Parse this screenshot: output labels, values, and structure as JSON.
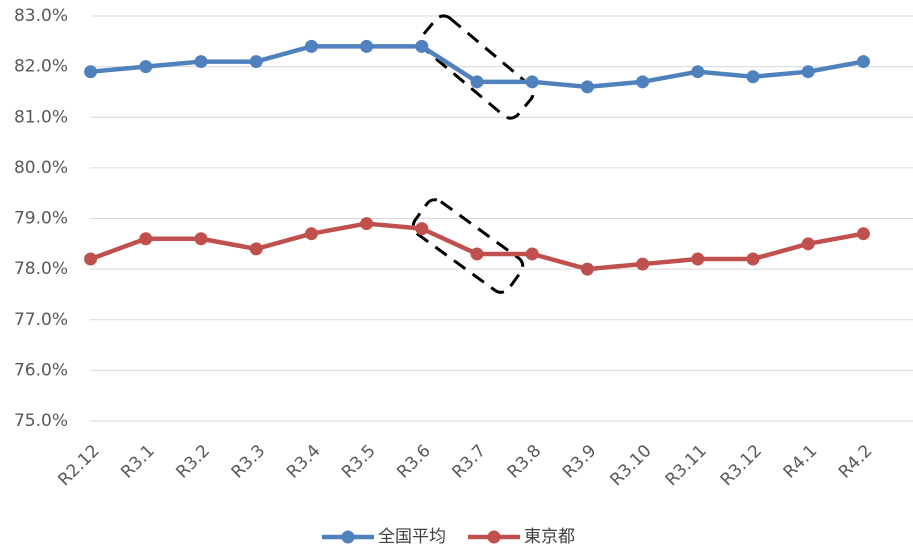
{
  "chart_data": {
    "type": "line",
    "categories": [
      "R2.12",
      "R3.1",
      "R3.2",
      "R3.3",
      "R3.4",
      "R3.5",
      "R3.6",
      "R3.7",
      "R3.8",
      "R3.9",
      "R3.10",
      "R3.11",
      "R3.12",
      "R4.1",
      "R4.2"
    ],
    "series": [
      {
        "name": "全国平均",
        "color": "#4f81bd",
        "values": [
          81.9,
          82.0,
          82.1,
          82.1,
          82.4,
          82.4,
          82.4,
          81.7,
          81.7,
          81.6,
          81.7,
          81.9,
          81.8,
          81.9,
          82.1
        ]
      },
      {
        "name": "東京都",
        "color": "#c0504d",
        "values": [
          78.2,
          78.6,
          78.6,
          78.4,
          78.7,
          78.9,
          78.8,
          78.3,
          78.3,
          78.0,
          78.1,
          78.2,
          78.2,
          78.5,
          78.7
        ]
      }
    ],
    "ylim": [
      75,
      83
    ],
    "yticks": [
      {
        "value": 75,
        "label": "75.0%"
      },
      {
        "value": 76,
        "label": "76.0%"
      },
      {
        "value": 77,
        "label": "77.0%"
      },
      {
        "value": 78,
        "label": "78.0%"
      },
      {
        "value": 79,
        "label": "79.0%"
      },
      {
        "value": 80,
        "label": "80.0%"
      },
      {
        "value": 81,
        "label": "81.0%"
      },
      {
        "value": 82,
        "label": "82.0%"
      },
      {
        "value": 83,
        "label": "83.0%"
      }
    ],
    "grid": true,
    "legend": "bottom"
  }
}
